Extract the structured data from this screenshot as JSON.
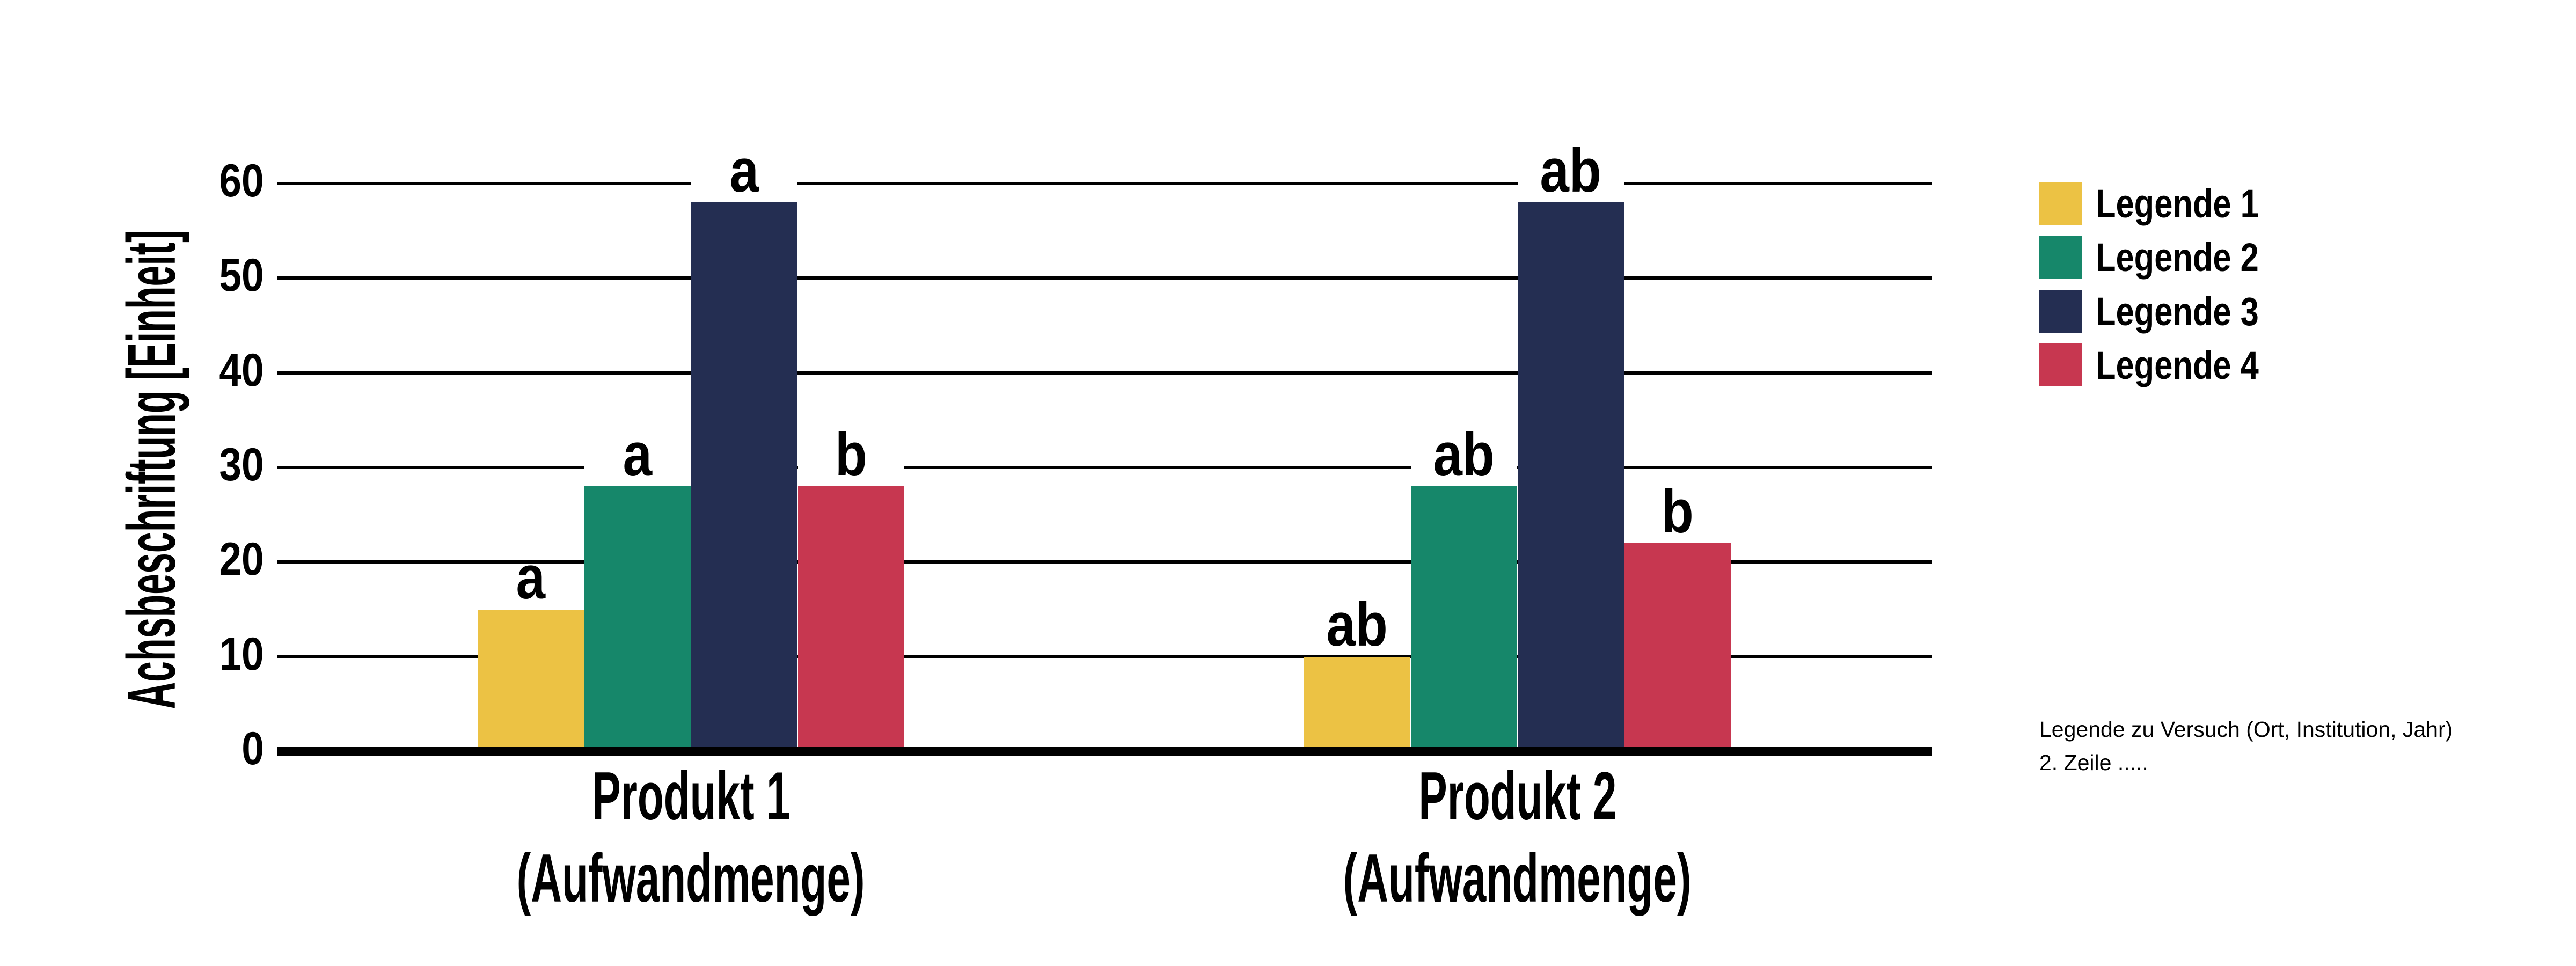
{
  "chart_data": {
    "type": "bar",
    "title": "",
    "ylabel": "Achsbeschriftung [Einheit]",
    "xlabel": "",
    "ylim": [
      0,
      60
    ],
    "yticks": [
      0,
      10,
      20,
      30,
      40,
      50,
      60
    ],
    "grid": true,
    "legend_position": "right",
    "background": "#FFFFFF",
    "axis_color": "#000000",
    "categories": [
      {
        "line1": "Produkt 1",
        "line2": "(Aufwandmenge)"
      },
      {
        "line1": "Produkt 2",
        "line2": "(Aufwandmenge)"
      }
    ],
    "series": [
      {
        "name": "Legende 1",
        "color": "#ECC244",
        "values": [
          15,
          10
        ],
        "significance_letters": [
          "a",
          "ab"
        ]
      },
      {
        "name": "Legende 2",
        "color": "#16876A",
        "values": [
          28,
          28
        ],
        "significance_letters": [
          "a",
          "ab"
        ]
      },
      {
        "name": "Legende 3",
        "color": "#242E52",
        "values": [
          58,
          58
        ],
        "significance_letters": [
          "a",
          "ab"
        ]
      },
      {
        "name": "Legende 4",
        "color": "#C73750",
        "values": [
          28,
          22
        ],
        "significance_letters": [
          "b",
          "b"
        ]
      }
    ]
  },
  "footnote": {
    "line1": "Legende zu Versuch (Ort, Institution, Jahr)",
    "line2": "2. Zeile ....."
  }
}
